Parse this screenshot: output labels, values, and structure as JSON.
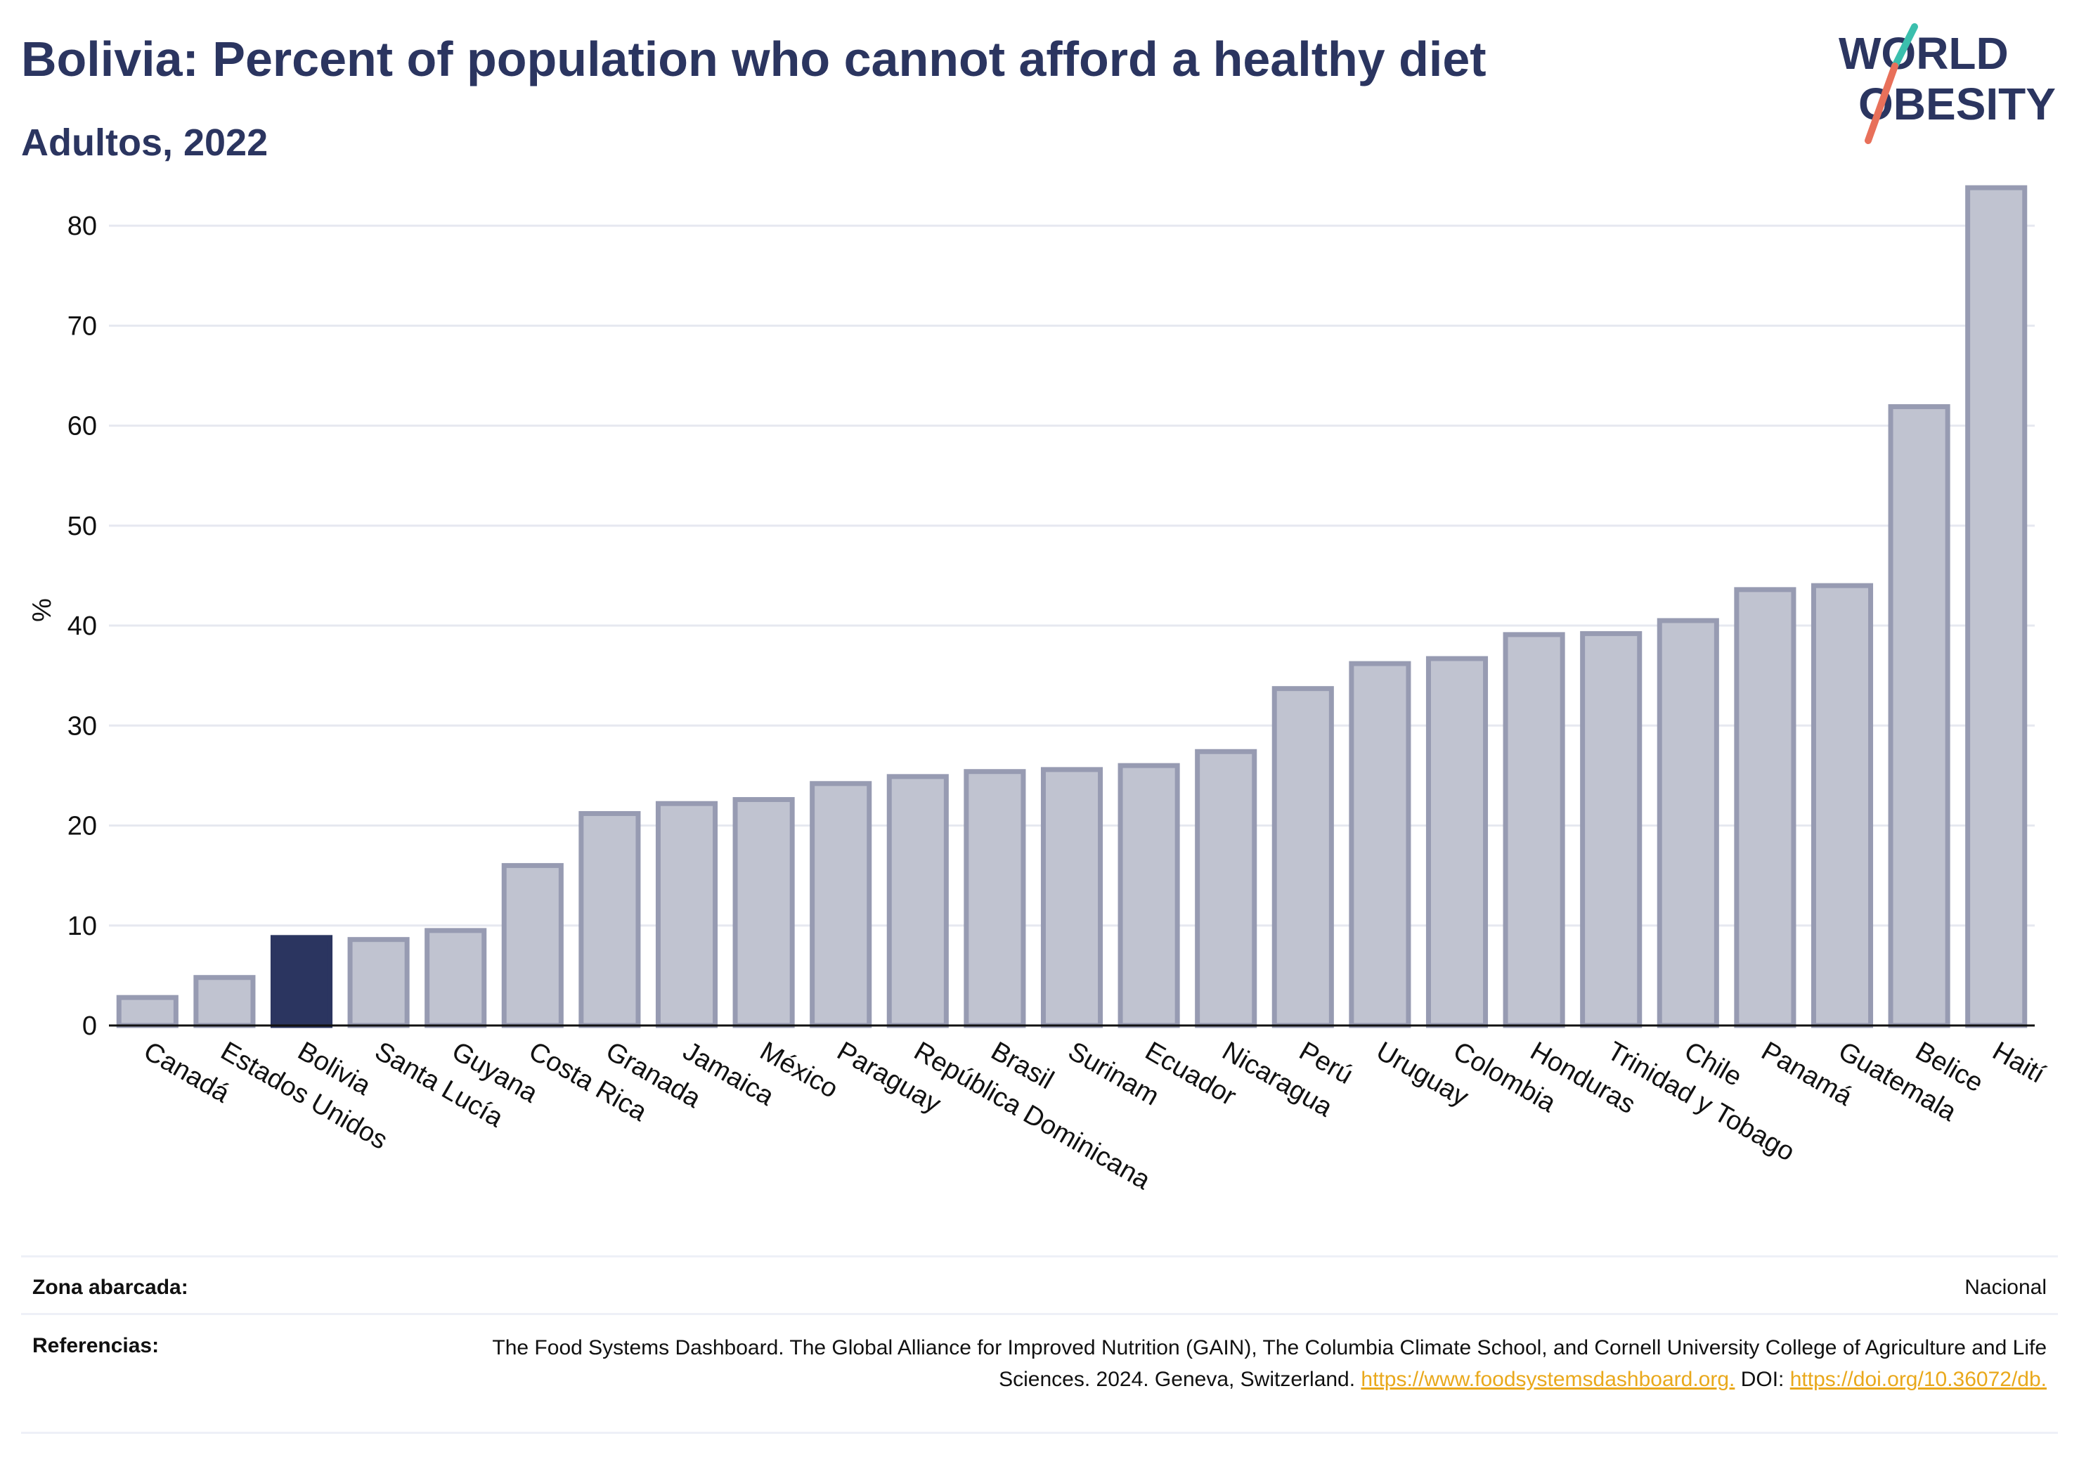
{
  "header": {
    "title": "Bolivia: Percent of population who cannot afford a healthy diet",
    "subtitle": "Adultos, 2022"
  },
  "logo": {
    "line1": "WORLD",
    "line2": "OBESITY"
  },
  "colors": {
    "title": "#2b3560",
    "bar_fill": "#c0c3d0",
    "bar_stroke": "#979bb2",
    "highlight": "#2b3560",
    "logo_teal": "#3bbfad",
    "logo_coral": "#e8705a",
    "link": "#e9a81b"
  },
  "chart_data": {
    "type": "bar",
    "ylabel": "%",
    "xlabel": "",
    "ylim": [
      0,
      85
    ],
    "yticks": [
      0,
      10,
      20,
      30,
      40,
      50,
      60,
      70,
      80
    ],
    "grid": true,
    "highlight_category": "Bolivia",
    "categories": [
      "Canadá",
      "Estados Unidos",
      "Bolivia",
      "Santa Lucía",
      "Guyana",
      "Costa Rica",
      "Granada",
      "Jamaica",
      "México",
      "Paraguay",
      "República Dominicana",
      "Brasil",
      "Surinam",
      "Ecuador",
      "Nicaragua",
      "Perú",
      "Uruguay",
      "Colombia",
      "Honduras",
      "Trinidad y Tobago",
      "Chile",
      "Panamá",
      "Guatemala",
      "Belice",
      "Haití"
    ],
    "values": [
      2.8,
      4.8,
      8.8,
      8.6,
      9.5,
      16.0,
      21.2,
      22.2,
      22.6,
      24.2,
      24.9,
      25.4,
      25.6,
      26.0,
      27.4,
      33.7,
      36.2,
      36.7,
      39.1,
      39.2,
      40.5,
      43.6,
      44.0,
      61.9,
      83.8
    ]
  },
  "footer": {
    "zone_label": "Zona abarcada:",
    "zone_value": "Nacional",
    "refs_label": "Referencias:",
    "refs_text": "The Food Systems Dashboard. The Global Alliance for Improved Nutrition (GAIN), The Columbia Climate School, and Cornell University College of Agriculture and Life Sciences. 2024. Geneva, Switzerland.",
    "refs_link1": "https://www.foodsystemsdashboard.org.",
    "refs_doi_label": "DOI:",
    "refs_link2": "https://doi.org/10.36072/db."
  }
}
